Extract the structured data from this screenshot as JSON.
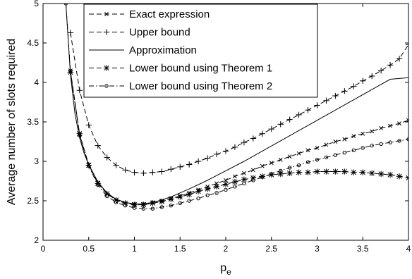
{
  "chart_data": {
    "type": "line",
    "title": "",
    "xlabel": "p",
    "xlabel_subscript": "e",
    "ylabel": "Average number of slots required",
    "xlim": [
      0,
      4
    ],
    "ylim": [
      2,
      5
    ],
    "xticks": [
      0,
      0.5,
      1,
      1.5,
      2,
      2.5,
      3,
      3.5,
      4
    ],
    "xtick_labels": [
      "0",
      "0.5",
      "1",
      "1.5",
      "2",
      "2.5",
      "3",
      "3.5",
      "4"
    ],
    "yticks": [
      2,
      2.5,
      3,
      3.5,
      4,
      4.5,
      5
    ],
    "ytick_labels": [
      "2",
      "2.5",
      "3",
      "3.5",
      "4",
      "4.5",
      "5"
    ],
    "grid": false,
    "legend_position": "top-left",
    "colors": {
      "line": "#000000",
      "background": "#ffffff"
    },
    "series": [
      {
        "name": "Exact expression",
        "line_style": "dashed",
        "marker": "x",
        "x": [
          0.3,
          0.4,
          0.5,
          0.6,
          0.7,
          0.8,
          0.9,
          1.0,
          1.1,
          1.2,
          1.3,
          1.4,
          1.5,
          1.6,
          1.7,
          1.8,
          1.9,
          2.0,
          2.1,
          2.2,
          2.3,
          2.4,
          2.5,
          2.6,
          2.7,
          2.8,
          2.9,
          3.0,
          3.1,
          3.2,
          3.3,
          3.4,
          3.5,
          3.6,
          3.7,
          3.8,
          3.9,
          4.0
        ],
        "y": [
          4.15,
          3.34,
          2.96,
          2.73,
          2.59,
          2.51,
          2.47,
          2.46,
          2.46,
          2.48,
          2.5,
          2.53,
          2.56,
          2.6,
          2.64,
          2.68,
          2.72,
          2.76,
          2.81,
          2.85,
          2.89,
          2.94,
          2.98,
          3.02,
          3.06,
          3.1,
          3.14,
          3.17,
          3.21,
          3.25,
          3.28,
          3.32,
          3.35,
          3.38,
          3.42,
          3.45,
          3.48,
          3.52
        ]
      },
      {
        "name": "Upper bound",
        "line_style": "dashed",
        "marker": "plus",
        "x": [
          0.3,
          0.4,
          0.5,
          0.6,
          0.7,
          0.8,
          0.9,
          1.0,
          1.1,
          1.2,
          1.3,
          1.4,
          1.5,
          1.6,
          1.7,
          1.8,
          1.9,
          2.0,
          2.1,
          2.2,
          2.3,
          2.4,
          2.5,
          2.6,
          2.7,
          2.8,
          2.9,
          3.0,
          3.1,
          3.2,
          3.3,
          3.4,
          3.5,
          3.6,
          3.7,
          3.8,
          3.9,
          4.0
        ],
        "y": [
          4.63,
          3.9,
          3.46,
          3.2,
          3.05,
          2.95,
          2.89,
          2.86,
          2.85,
          2.86,
          2.87,
          2.9,
          2.93,
          2.96,
          3.0,
          3.04,
          3.09,
          3.13,
          3.18,
          3.24,
          3.29,
          3.35,
          3.41,
          3.47,
          3.53,
          3.59,
          3.65,
          3.71,
          3.77,
          3.83,
          3.89,
          3.95,
          4.02,
          4.08,
          4.15,
          4.22,
          4.3,
          4.48
        ]
      },
      {
        "name": "Approximation",
        "line_style": "solid",
        "marker": "none",
        "x": [
          0.25,
          0.3,
          0.35,
          0.4,
          0.45,
          0.5,
          0.6,
          0.7,
          0.8,
          0.9,
          1.0,
          1.1,
          1.2,
          1.3,
          1.4,
          1.5,
          1.6,
          1.8,
          2.0,
          2.2,
          2.4,
          2.6,
          2.8,
          3.0,
          3.2,
          3.4,
          3.6,
          3.8,
          4.0
        ],
        "y": [
          5.0,
          4.1,
          3.6,
          3.3,
          3.1,
          2.96,
          2.74,
          2.6,
          2.52,
          2.48,
          2.46,
          2.46,
          2.48,
          2.51,
          2.55,
          2.6,
          2.65,
          2.76,
          2.88,
          3.0,
          3.13,
          3.26,
          3.39,
          3.52,
          3.65,
          3.78,
          3.91,
          4.04,
          4.06
        ]
      },
      {
        "name": "Lower bound using Theorem 1",
        "line_style": "dashed",
        "marker": "asterisk",
        "x": [
          0.3,
          0.4,
          0.5,
          0.6,
          0.7,
          0.8,
          0.9,
          1.0,
          1.1,
          1.2,
          1.3,
          1.4,
          1.5,
          1.6,
          1.7,
          1.8,
          1.9,
          2.0,
          2.1,
          2.2,
          2.3,
          2.4,
          2.5,
          2.6,
          2.7,
          2.8,
          2.9,
          3.0,
          3.1,
          3.2,
          3.3,
          3.4,
          3.5,
          3.6,
          3.7,
          3.8,
          3.9,
          4.0
        ],
        "y": [
          4.13,
          3.35,
          2.95,
          2.72,
          2.59,
          2.51,
          2.47,
          2.45,
          2.45,
          2.47,
          2.49,
          2.52,
          2.55,
          2.58,
          2.62,
          2.65,
          2.68,
          2.71,
          2.74,
          2.77,
          2.79,
          2.81,
          2.83,
          2.84,
          2.85,
          2.86,
          2.86,
          2.87,
          2.87,
          2.87,
          2.87,
          2.86,
          2.86,
          2.85,
          2.84,
          2.83,
          2.81,
          2.79
        ]
      },
      {
        "name": "Lower bound using Theorem 2",
        "line_style": "dashdot",
        "marker": "circle",
        "x": [
          0.25,
          0.3,
          0.4,
          0.5,
          0.6,
          0.7,
          0.8,
          0.9,
          1.0,
          1.1,
          1.2,
          1.3,
          1.4,
          1.5,
          1.6,
          1.7,
          1.8,
          1.9,
          2.0,
          2.1,
          2.2,
          2.3,
          2.4,
          2.5,
          2.6,
          2.7,
          2.8,
          2.9,
          3.0,
          3.1,
          3.2,
          3.3,
          3.4,
          3.5,
          3.6,
          3.7,
          3.8,
          3.9,
          4.0
        ],
        "y": [
          5.0,
          4.14,
          3.33,
          2.94,
          2.7,
          2.56,
          2.48,
          2.44,
          2.41,
          2.4,
          2.4,
          2.42,
          2.44,
          2.47,
          2.5,
          2.53,
          2.57,
          2.6,
          2.64,
          2.68,
          2.72,
          2.76,
          2.8,
          2.84,
          2.88,
          2.92,
          2.95,
          2.99,
          3.02,
          3.05,
          3.08,
          3.11,
          3.14,
          3.17,
          3.2,
          3.22,
          3.24,
          3.26,
          3.28
        ]
      }
    ]
  }
}
